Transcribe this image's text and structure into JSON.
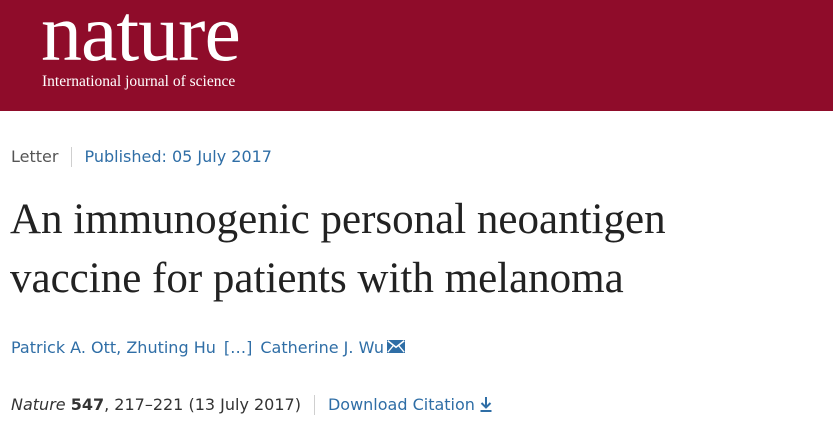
{
  "header": {
    "logo_text": "nature",
    "tagline": "International journal of science",
    "brand_color": "#8f0c2a"
  },
  "article": {
    "type": "Letter",
    "published": "Published: 05 July 2017",
    "title_line1": "An immunogenic personal neoantigen",
    "title_line2": "vaccine for patients with melanoma",
    "authors": {
      "first": "Patrick A. Ott,",
      "second": "Zhuting Hu",
      "ellipsis": "[…]",
      "last": "Catherine J. Wu",
      "contact_icon": "envelope-icon"
    },
    "citation": {
      "journal": "Nature",
      "volume": "547",
      "pages": ", 217–221 (13 July 2017)",
      "download_label": "Download Citation",
      "download_icon": "download-arrow-icon"
    },
    "link_color": "#2f6ea6"
  }
}
